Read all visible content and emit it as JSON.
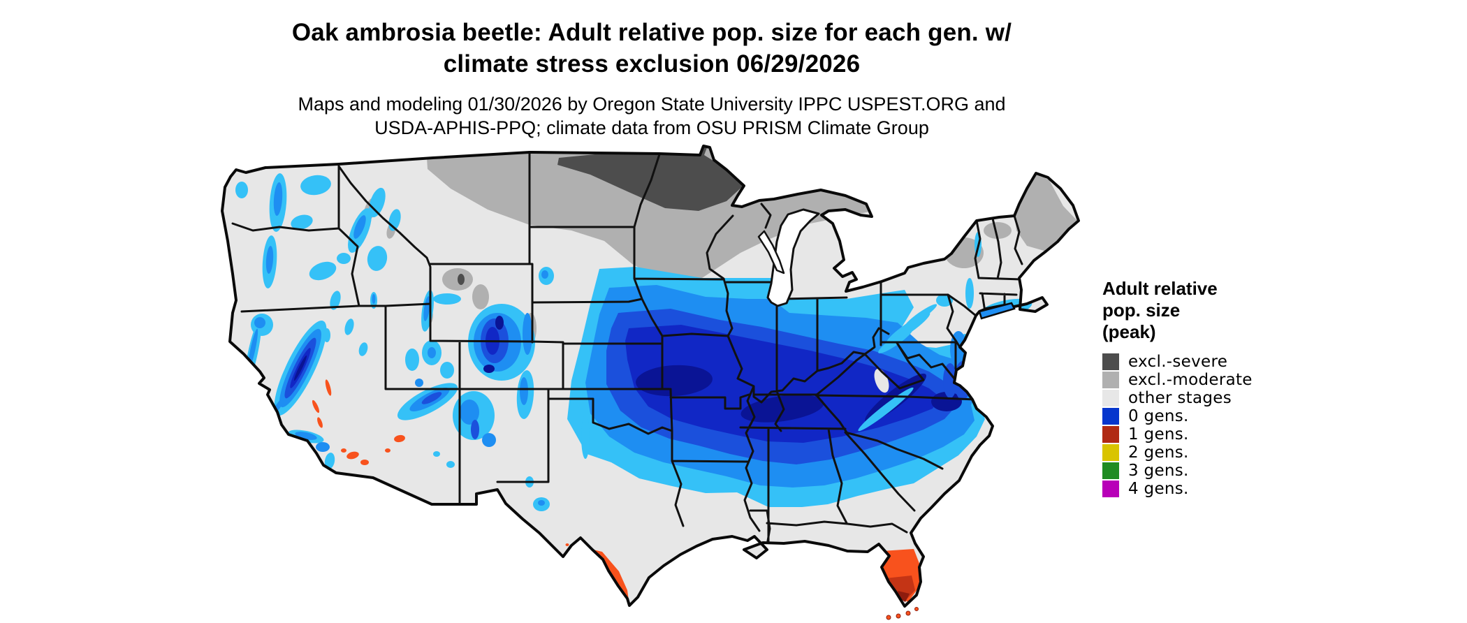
{
  "title": {
    "line1": "Oak ambrosia beetle: Adult relative pop. size for each gen. w/",
    "line2": "climate stress exclusion 06/29/2026"
  },
  "subtitle": {
    "line1": "Maps and modeling 01/30/2026 by Oregon State University IPPC USPEST.ORG and",
    "line2": "USDA-APHIS-PPQ; climate data from OSU PRISM Climate Group"
  },
  "legend": {
    "title": "Adult relative\npop. size\n(peak)",
    "items": [
      {
        "label": "excl.-severe",
        "color": "#4d4d4d"
      },
      {
        "label": "excl.-moderate",
        "color": "#b0b0b0"
      },
      {
        "label": "other stages",
        "color": "#e7e7e7"
      },
      {
        "label": "0 gens.",
        "color": "#0636cd"
      },
      {
        "label": "1 gens.",
        "color": "#b02a14"
      },
      {
        "label": "2 gens.",
        "color": "#d9c400"
      },
      {
        "label": "3 gens.",
        "color": "#1f8c22"
      },
      {
        "label": "4 gens.",
        "color": "#b800b8"
      }
    ]
  },
  "palette": {
    "severe": "#4d4d4d",
    "moderate": "#b0b0b0",
    "other": "#e7e7e7",
    "blue_fringe": "#35c1f7",
    "blue_light": "#1e8ef2",
    "blue_mid": "#1b50dc",
    "blue_deep": "#1127c5",
    "navy": "#0a1495",
    "orange": "#f8521d",
    "red_mid": "#c43415",
    "red_dark": "#8e1c0e",
    "lake": "#ffffff",
    "border": "#111111"
  },
  "chart_data": {
    "type": "heatmap",
    "title": "Oak ambrosia beetle: Adult relative pop. size for each gen. w/ climate stress exclusion 06/29/2026",
    "legend_title": "Adult relative pop. size (peak)",
    "legend_entries": [
      "excl.-severe",
      "excl.-moderate",
      "other stages",
      "0 gens.",
      "1 gens.",
      "2 gens.",
      "3 gens.",
      "4 gens."
    ],
    "legend_position": "right",
    "map_extent": "Contiguous United States with state boundaries",
    "regions": [
      {
        "area": "Northern Minnesota and northeastern North Dakota along the Canadian border",
        "class": "excl.-severe"
      },
      {
        "area": "Northern tier: NE Montana, North Dakota, northern South Dakota, most of Minnesota, northern Wisconsin, Upper Michigan, northern Maine, Adirondacks, high Rockies of Wyoming/Colorado",
        "class": "excl.-moderate"
      },
      {
        "area": "Pacific Northwest lowlands, Great Basin, most of Texas, Gulf Coast states, northern Florida, Northeast lowlands, central Pennsylvania and New York",
        "class": "other stages"
      },
      {
        "area": "Broad central band from Nebraska/Kansas/Oklahoma eastward through Iowa, Missouri, Illinois, Indiana, Ohio, Kentucky, Tennessee, West Virginia, Virginia and the mid-Atlantic coastal plain; also Sierra Nevada, Cascades, Rockies and southwestern mountain ranges (darker blue = larger relative adult population)",
        "class": "0 gens."
      },
      {
        "area": "South Texas (Rio Grande Valley, darkening to deep red at the southern tip), central and southern Florida (darkening toward the Everglades and Keys), small desert spots in SE California and SW/central Arizona",
        "class": "1 gens."
      },
      {
        "area": "not present on map (legend only)",
        "class": "2 gens., 3 gens., 4 gens."
      }
    ]
  }
}
